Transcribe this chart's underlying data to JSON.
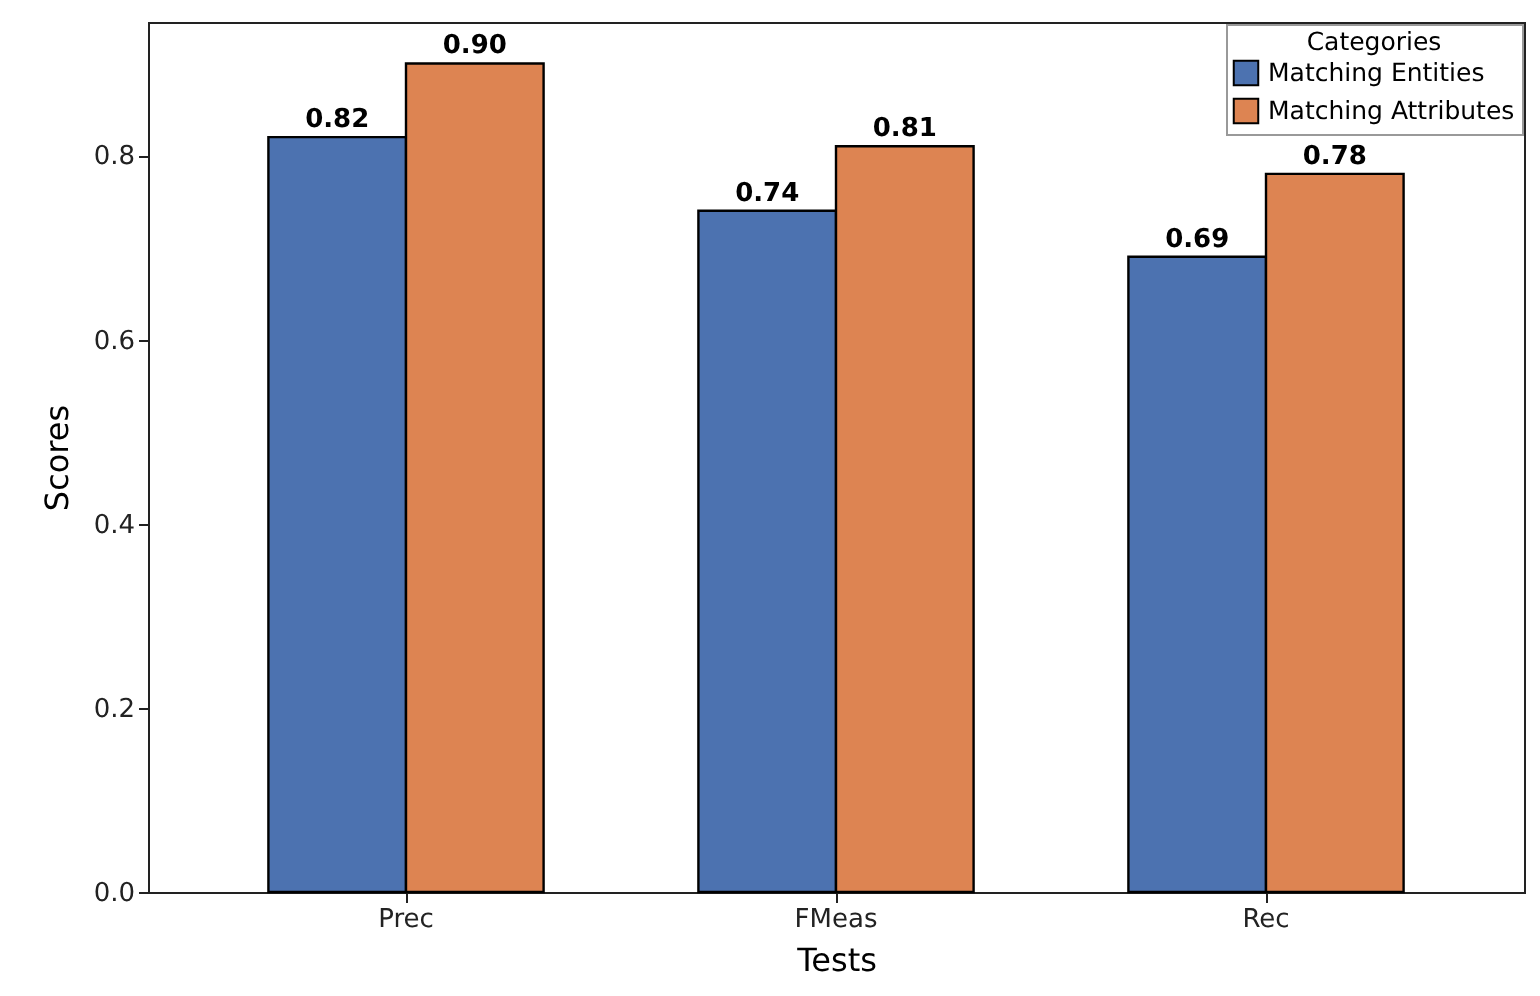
{
  "chart_data": {
    "type": "bar",
    "xlabel": "Tests",
    "ylabel": "Scores",
    "legend_title": "Categories",
    "categories": [
      "Prec",
      "FMeas",
      "Rec"
    ],
    "series": [
      {
        "name": "Matching Entities",
        "color": "#4c72b0",
        "values": [
          0.82,
          0.74,
          0.69
        ],
        "value_labels": [
          "0.82",
          "0.74",
          "0.69"
        ]
      },
      {
        "name": "Matching Attributes",
        "color": "#dd8452",
        "values": [
          0.9,
          0.81,
          0.78
        ],
        "value_labels": [
          "0.90",
          "0.81",
          "0.78"
        ]
      }
    ],
    "ylim": [
      0,
      0.945
    ],
    "yticks": [
      {
        "value": 0,
        "label": "0.0"
      },
      {
        "value": 0.2,
        "label": "0.2"
      },
      {
        "value": 0.4,
        "label": "0.4"
      },
      {
        "value": 0.6,
        "label": "0.6"
      },
      {
        "value": 0.8,
        "label": "0.8"
      }
    ],
    "grid": false,
    "legend": "top right"
  }
}
